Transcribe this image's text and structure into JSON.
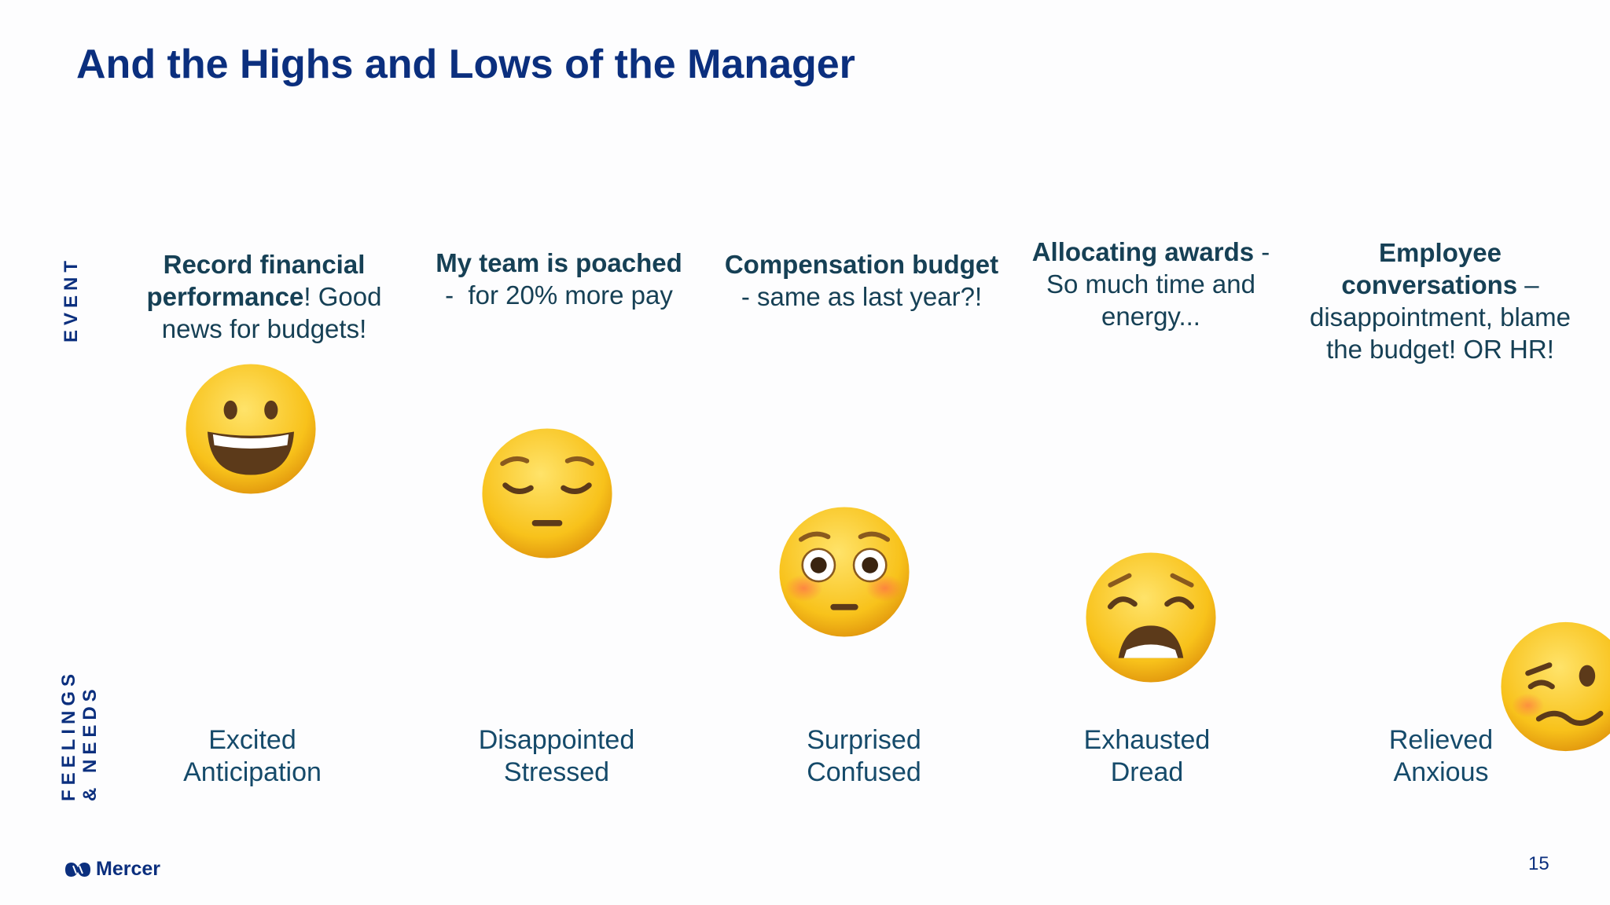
{
  "title": "And the Highs and Lows of the Manager",
  "row_labels": {
    "event": "EVENT",
    "feelings_line1": "FEELINGS",
    "feelings_line2": "& NEEDS"
  },
  "events": [
    {
      "lines": [
        {
          "b": "Record financial",
          "n": ""
        },
        {
          "b": "performance",
          "n": "! Good"
        },
        {
          "b": "",
          "n": "news for budgets!"
        }
      ]
    },
    {
      "lines": [
        {
          "b": "My team is poached",
          "n": ""
        },
        {
          "b": "",
          "n": "-  for 20% more pay"
        }
      ]
    },
    {
      "lines": [
        {
          "b": "Compensation budget",
          "n": ""
        },
        {
          "b": "",
          "n": "- same as last year?!"
        }
      ]
    },
    {
      "lines": [
        {
          "b": "Allocating awards",
          "n": " -"
        },
        {
          "b": "",
          "n": "So much time and"
        },
        {
          "b": "",
          "n": "energy..."
        }
      ]
    },
    {
      "lines": [
        {
          "b": "Employee",
          "n": ""
        },
        {
          "b": "conversations",
          "n": " –"
        },
        {
          "b": "",
          "n": "disappointment, blame"
        },
        {
          "b": "",
          "n": "the budget! OR HR!"
        }
      ]
    }
  ],
  "feelings": [
    {
      "line1": "Excited",
      "line2": "Anticipation"
    },
    {
      "line1": "Disappointed",
      "line2": "Stressed"
    },
    {
      "line1": "Surprised",
      "line2": "Confused"
    },
    {
      "line1": "Exhausted",
      "line2": "Dread"
    },
    {
      "line1": "Relieved",
      "line2": "Anxious"
    }
  ],
  "emojis": [
    "grinning-face-icon",
    "pensive-face-icon",
    "flushed-face-icon",
    "weary-face-icon",
    "woozy-face-icon"
  ],
  "footer": {
    "brand": "Mercer",
    "page_number": "15"
  },
  "colors": {
    "title": "#0b2f7e",
    "body_text": "#164055",
    "emoji_yellow": "#f7c21c"
  }
}
